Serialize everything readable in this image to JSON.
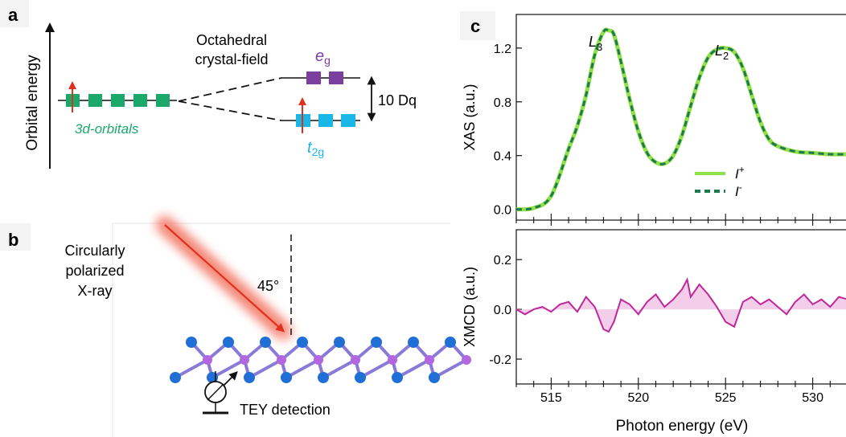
{
  "panel_a": {
    "label": "a",
    "y_axis_label": "Orbital energy",
    "orbitals_label": "3d-orbitals",
    "crystal_field_label_line1": "Octahedral",
    "crystal_field_label_line2": "crystal-field",
    "eg_label": "e",
    "eg_sub": "g",
    "t2g_label": "t",
    "t2g_sub": "2g",
    "splitting_label": "10 Dq",
    "colors": {
      "orbital": "#1aa86b",
      "eg": "#7b3fa0",
      "t2g": "#19b6e6",
      "spin": "#e0301e"
    }
  },
  "panel_b": {
    "label": "b",
    "xray_label": [
      "Circularly",
      "polarized",
      "X-ray"
    ],
    "angle_label": "45°",
    "detection_label": "TEY detection",
    "colors": {
      "beam": "#e8321e",
      "atom_large": "#1f6fd6",
      "atom_small": "#b266e0"
    }
  },
  "panel_c": {
    "label": "c",
    "x_axis_label": "Photon energy (eV)",
    "top_ylabel": "XAS (a.u.)",
    "bottom_ylabel": "XMCD (a.u.)",
    "peak_l3": "L",
    "peak_l3_sub": "3",
    "peak_l2": "L",
    "peak_l2_sub": "2",
    "legend": [
      {
        "name": "I",
        "sup": "+",
        "color": "#8fe04a",
        "style": "solid"
      },
      {
        "name": "I",
        "sup": "-",
        "color": "#1e7a4a",
        "style": "dashed"
      }
    ],
    "xmcd_color": "#c0289a"
  },
  "chart_data": [
    {
      "type": "line",
      "title": "",
      "xlabel": "Photon energy (eV)",
      "ylabel": "XAS (a.u.)",
      "xlim": [
        513,
        532
      ],
      "ylim": [
        -0.08,
        1.45
      ],
      "xticks": [
        515,
        520,
        525,
        530
      ],
      "yticks": [
        0.0,
        0.4,
        0.8,
        1.2
      ],
      "ytick_labels": [
        "0.0",
        "0.4",
        "0.8",
        "1.2"
      ],
      "grid": false,
      "legend_position": "center-right",
      "series": [
        {
          "name": "I+",
          "x": [
            513,
            514,
            515,
            516,
            516.5,
            517,
            517.5,
            518,
            518.3,
            518.6,
            519,
            519.5,
            520,
            520.5,
            521,
            521.5,
            522,
            522.5,
            523,
            523.5,
            524,
            524.5,
            525,
            525.5,
            526,
            526.5,
            527,
            527.5,
            528,
            529,
            530,
            531,
            532
          ],
          "values": [
            0.0,
            0.01,
            0.1,
            0.45,
            0.62,
            0.85,
            1.15,
            1.32,
            1.33,
            1.3,
            1.1,
            0.82,
            0.58,
            0.42,
            0.35,
            0.34,
            0.4,
            0.55,
            0.77,
            0.98,
            1.13,
            1.19,
            1.2,
            1.17,
            1.05,
            0.85,
            0.65,
            0.52,
            0.47,
            0.43,
            0.42,
            0.41,
            0.41
          ]
        },
        {
          "name": "I-",
          "x": [
            513,
            514,
            515,
            516,
            516.5,
            517,
            517.5,
            518,
            518.3,
            518.6,
            519,
            519.5,
            520,
            520.5,
            521,
            521.5,
            522,
            522.5,
            523,
            523.5,
            524,
            524.5,
            525,
            525.5,
            526,
            526.5,
            527,
            527.5,
            528,
            529,
            530,
            531,
            532
          ],
          "values": [
            0.0,
            0.01,
            0.1,
            0.45,
            0.62,
            0.85,
            1.15,
            1.32,
            1.33,
            1.3,
            1.1,
            0.82,
            0.58,
            0.42,
            0.35,
            0.34,
            0.4,
            0.55,
            0.77,
            0.98,
            1.13,
            1.19,
            1.2,
            1.17,
            1.05,
            0.85,
            0.65,
            0.52,
            0.47,
            0.43,
            0.42,
            0.41,
            0.41
          ]
        }
      ]
    },
    {
      "type": "line",
      "title": "",
      "xlabel": "Photon energy (eV)",
      "ylabel": "XMCD (a.u.)",
      "xlim": [
        513,
        532
      ],
      "ylim": [
        -0.3,
        0.32
      ],
      "xticks": [
        515,
        520,
        525,
        530
      ],
      "yticks": [
        -0.2,
        0.0,
        0.2
      ],
      "ytick_labels": [
        "-0.2",
        "0.0",
        "0.2"
      ],
      "grid": false,
      "series": [
        {
          "name": "XMCD",
          "x": [
            513,
            513.5,
            514,
            514.5,
            515,
            515.5,
            516,
            516.5,
            517,
            517.5,
            518,
            518.3,
            518.6,
            519,
            519.5,
            520,
            520.5,
            521,
            521.5,
            522,
            522.5,
            522.8,
            523,
            523.5,
            524,
            524.5,
            525,
            525.5,
            526,
            526.5,
            527,
            527.5,
            528,
            528.5,
            529,
            529.5,
            530,
            530.5,
            531,
            531.5,
            532
          ],
          "values": [
            0.0,
            -0.02,
            0.0,
            0.01,
            -0.01,
            0.02,
            0.03,
            -0.01,
            0.05,
            0.01,
            -0.08,
            -0.09,
            -0.05,
            0.04,
            0.02,
            -0.02,
            0.03,
            0.06,
            0.01,
            0.04,
            0.08,
            0.12,
            0.05,
            0.1,
            0.06,
            0.01,
            -0.05,
            -0.07,
            0.03,
            0.05,
            0.02,
            0.04,
            0.01,
            -0.02,
            0.03,
            0.06,
            0.02,
            0.04,
            0.01,
            0.05,
            0.04
          ]
        }
      ]
    }
  ]
}
